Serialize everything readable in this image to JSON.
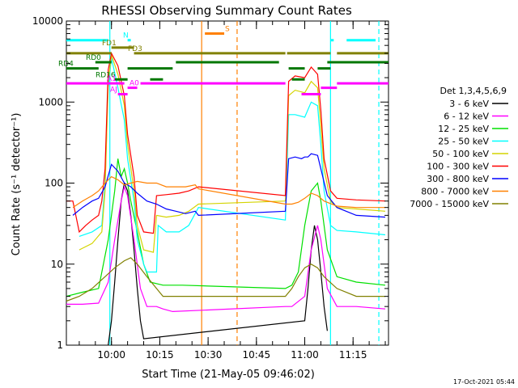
{
  "chart_data": {
    "type": "line",
    "title": "RHESSI Observing Summary Count Rates",
    "xlabel": "Start Time (21-May-05 09:46:02)",
    "ylabel": "Count Rate (s⁻¹ detector⁻¹)",
    "ylim": [
      1,
      10000
    ],
    "yscale": "log",
    "xlim_minutes": [
      0,
      100
    ],
    "x_ticks": [
      {
        "label": "10:00",
        "t": 14
      },
      {
        "label": "10:15",
        "t": 29
      },
      {
        "label": "10:30",
        "t": 44
      },
      {
        "label": "10:45",
        "t": 59
      },
      {
        "label": "11:00",
        "t": 74
      },
      {
        "label": "11:15",
        "t": 89
      }
    ],
    "y_ticks": [
      {
        "label": "1",
        "v": 1
      },
      {
        "label": "10",
        "v": 10
      },
      {
        "label": "100",
        "v": 100
      },
      {
        "label": "1000",
        "v": 1000
      },
      {
        "label": "10000",
        "v": 10000
      }
    ],
    "legend_title": "Det 1,3,4,5,6,9",
    "legend_position": "right",
    "series": [
      {
        "name": "3 - 6 keV",
        "color": "#000000",
        "points": [
          [
            13,
            1
          ],
          [
            14,
            2
          ],
          [
            15,
            6
          ],
          [
            16,
            20
          ],
          [
            17,
            60
          ],
          [
            18,
            100
          ],
          [
            19,
            80
          ],
          [
            20,
            40
          ],
          [
            21,
            15
          ],
          [
            22,
            5
          ],
          [
            23,
            2
          ],
          [
            24,
            1.2
          ],
          [
            74,
            2
          ],
          [
            75,
            5
          ],
          [
            76,
            15
          ],
          [
            77,
            30
          ],
          [
            78,
            20
          ],
          [
            79,
            8
          ],
          [
            80,
            3
          ],
          [
            81,
            1.5
          ]
        ]
      },
      {
        "name": "6 - 12 keV",
        "color": "#ff00ff",
        "points": [
          [
            0,
            3.2
          ],
          [
            5,
            3.2
          ],
          [
            10,
            3.3
          ],
          [
            13,
            6
          ],
          [
            15,
            20
          ],
          [
            17,
            60
          ],
          [
            18,
            90
          ],
          [
            19,
            70
          ],
          [
            21,
            20
          ],
          [
            23,
            5
          ],
          [
            25,
            3
          ],
          [
            28,
            3
          ],
          [
            30,
            2.8
          ],
          [
            33,
            2.6
          ],
          [
            68,
            3
          ],
          [
            70,
            3
          ],
          [
            74,
            4
          ],
          [
            76,
            15
          ],
          [
            78,
            30
          ],
          [
            79,
            20
          ],
          [
            81,
            5
          ],
          [
            84,
            3
          ],
          [
            90,
            3
          ],
          [
            99,
            2.8
          ]
        ]
      },
      {
        "name": "12 - 25 keV",
        "color": "#00e000",
        "points": [
          [
            0,
            4
          ],
          [
            5,
            4.5
          ],
          [
            10,
            5
          ],
          [
            13,
            20
          ],
          [
            15,
            80
          ],
          [
            16,
            200
          ],
          [
            17,
            120
          ],
          [
            18,
            150
          ],
          [
            19,
            100
          ],
          [
            20,
            60
          ],
          [
            22,
            25
          ],
          [
            24,
            10
          ],
          [
            26,
            6
          ],
          [
            30,
            5.5
          ],
          [
            33,
            5.5
          ],
          [
            36,
            5.5
          ],
          [
            68,
            5
          ],
          [
            70,
            5.5
          ],
          [
            72,
            8
          ],
          [
            74,
            30
          ],
          [
            76,
            80
          ],
          [
            78,
            100
          ],
          [
            79,
            60
          ],
          [
            81,
            15
          ],
          [
            84,
            7
          ],
          [
            90,
            6
          ],
          [
            99,
            5.5
          ]
        ]
      },
      {
        "name": "25 - 50 keV",
        "color": "#00ffff",
        "points": [
          [
            4,
            22
          ],
          [
            8,
            25
          ],
          [
            11,
            30
          ],
          [
            12,
            100
          ],
          [
            13,
            1500
          ],
          [
            14,
            3500
          ],
          [
            16,
            1500
          ],
          [
            18,
            600
          ],
          [
            19,
            200
          ],
          [
            21,
            60
          ],
          [
            22,
            20
          ],
          [
            24,
            10
          ],
          [
            25,
            8
          ],
          [
            28,
            8
          ],
          [
            28.5,
            30
          ],
          [
            31,
            25
          ],
          [
            35,
            25
          ],
          [
            38,
            30
          ],
          [
            41,
            50
          ],
          [
            68,
            35
          ],
          [
            69,
            700
          ],
          [
            71,
            700
          ],
          [
            74,
            650
          ],
          [
            76,
            1000
          ],
          [
            78,
            900
          ],
          [
            79,
            300
          ],
          [
            80,
            80
          ],
          [
            82,
            30
          ],
          [
            84,
            26
          ],
          [
            90,
            25
          ],
          [
            99,
            23
          ]
        ]
      },
      {
        "name": "50 - 100 keV",
        "color": "#d4d400",
        "points": [
          [
            4,
            15
          ],
          [
            8,
            18
          ],
          [
            11,
            25
          ],
          [
            12,
            80
          ],
          [
            13,
            1800
          ],
          [
            14,
            3800
          ],
          [
            16,
            2200
          ],
          [
            18,
            900
          ],
          [
            19,
            300
          ],
          [
            21,
            80
          ],
          [
            22,
            30
          ],
          [
            24,
            15
          ],
          [
            27,
            14
          ],
          [
            28,
            40
          ],
          [
            31,
            38
          ],
          [
            35,
            40
          ],
          [
            38,
            45
          ],
          [
            41,
            55
          ],
          [
            68,
            60
          ],
          [
            69,
            1200
          ],
          [
            71,
            1400
          ],
          [
            74,
            1300
          ],
          [
            76,
            1800
          ],
          [
            78,
            1500
          ],
          [
            79,
            500
          ],
          [
            80,
            150
          ],
          [
            82,
            60
          ],
          [
            84,
            50
          ],
          [
            90,
            48
          ],
          [
            99,
            45
          ]
        ]
      },
      {
        "name": "100 - 300 keV",
        "color": "#ff0000",
        "points": [
          [
            0,
            60
          ],
          [
            2,
            60
          ],
          [
            4,
            25
          ],
          [
            6,
            30
          ],
          [
            8,
            35
          ],
          [
            10,
            40
          ],
          [
            11,
            60
          ],
          [
            12,
            150
          ],
          [
            13,
            2500
          ],
          [
            14,
            4000
          ],
          [
            16,
            2800
          ],
          [
            18,
            1200
          ],
          [
            19,
            400
          ],
          [
            21,
            120
          ],
          [
            22,
            40
          ],
          [
            24,
            25
          ],
          [
            27,
            24
          ],
          [
            28,
            70
          ],
          [
            31,
            72
          ],
          [
            35,
            75
          ],
          [
            38,
            80
          ],
          [
            41,
            90
          ],
          [
            68,
            70
          ],
          [
            69,
            1800
          ],
          [
            71,
            2100
          ],
          [
            74,
            2000
          ],
          [
            76,
            2700
          ],
          [
            78,
            2200
          ],
          [
            79,
            800
          ],
          [
            80,
            200
          ],
          [
            82,
            80
          ],
          [
            84,
            65
          ],
          [
            90,
            62
          ],
          [
            99,
            60
          ]
        ]
      },
      {
        "name": "300 - 800 keV",
        "color": "#0000ff",
        "points": [
          [
            2,
            40
          ],
          [
            5,
            50
          ],
          [
            8,
            60
          ],
          [
            10,
            65
          ],
          [
            12,
            90
          ],
          [
            14,
            170
          ],
          [
            16,
            140
          ],
          [
            18,
            100
          ],
          [
            20,
            90
          ],
          [
            22,
            75
          ],
          [
            25,
            60
          ],
          [
            28,
            55
          ],
          [
            31,
            48
          ],
          [
            34,
            45
          ],
          [
            37,
            42
          ],
          [
            40,
            45
          ],
          [
            41,
            40
          ],
          [
            68,
            45
          ],
          [
            69,
            200
          ],
          [
            71,
            210
          ],
          [
            73,
            200
          ],
          [
            74,
            210
          ],
          [
            75,
            210
          ],
          [
            76,
            230
          ],
          [
            78,
            220
          ],
          [
            79,
            150
          ],
          [
            81,
            70
          ],
          [
            84,
            50
          ],
          [
            90,
            40
          ],
          [
            99,
            38
          ]
        ]
      },
      {
        "name": "800 - 7000 keV",
        "color": "#ff8000",
        "points": [
          [
            2,
            50
          ],
          [
            5,
            60
          ],
          [
            8,
            70
          ],
          [
            10,
            80
          ],
          [
            12,
            100
          ],
          [
            14,
            120
          ],
          [
            16,
            110
          ],
          [
            18,
            95
          ],
          [
            20,
            100
          ],
          [
            22,
            105
          ],
          [
            25,
            100
          ],
          [
            28,
            100
          ],
          [
            31,
            90
          ],
          [
            34,
            90
          ],
          [
            37,
            90
          ],
          [
            40,
            95
          ],
          [
            41,
            85
          ],
          [
            68,
            55
          ],
          [
            70,
            55
          ],
          [
            72,
            58
          ],
          [
            74,
            65
          ],
          [
            76,
            75
          ],
          [
            78,
            70
          ],
          [
            80,
            60
          ],
          [
            84,
            52
          ],
          [
            90,
            50
          ],
          [
            99,
            50
          ]
        ]
      },
      {
        "name": "7000 - 15000 keV",
        "color": "#808000",
        "points": [
          [
            0,
            3.5
          ],
          [
            4,
            4
          ],
          [
            8,
            5
          ],
          [
            12,
            7
          ],
          [
            15,
            9
          ],
          [
            18,
            11
          ],
          [
            20,
            12
          ],
          [
            22,
            10
          ],
          [
            25,
            7
          ],
          [
            28,
            5
          ],
          [
            30,
            4
          ],
          [
            33,
            4
          ],
          [
            68,
            4
          ],
          [
            70,
            5
          ],
          [
            72,
            7
          ],
          [
            74,
            9
          ],
          [
            76,
            10
          ],
          [
            78,
            9
          ],
          [
            80,
            7
          ],
          [
            84,
            5
          ],
          [
            90,
            4
          ],
          [
            99,
            4
          ]
        ]
      }
    ],
    "state_bars": [
      {
        "label": "N",
        "color": "#00ffff",
        "v": 5800,
        "segments": [
          [
            0,
            13
          ],
          [
            19,
            20
          ],
          [
            82,
            83
          ],
          [
            87,
            96
          ]
        ]
      },
      {
        "label": "S",
        "color": "#ff8000",
        "v": 7000,
        "segments": [
          [
            43,
            49
          ]
        ]
      },
      {
        "label": "FD1",
        "color": "#808000",
        "v": 4700,
        "segments": [
          [
            14,
            21
          ]
        ]
      },
      {
        "label": "FD3",
        "color": "#808000",
        "v": 4000,
        "segments": [
          [
            0,
            14
          ],
          [
            21,
            68
          ],
          [
            68.5,
            82
          ],
          [
            84,
            100
          ]
        ]
      },
      {
        "label": "RD0",
        "color": "#007700",
        "v": 3100,
        "segments": [
          [
            9,
            14
          ],
          [
            34,
            66
          ],
          [
            81,
            100
          ]
        ]
      },
      {
        "label": "RD4",
        "color": "#007700",
        "v": 2600,
        "segments": [
          [
            0,
            10
          ],
          [
            19,
            33
          ],
          [
            69,
            74
          ],
          [
            78,
            82
          ]
        ]
      },
      {
        "label": "RD16",
        "color": "#007700",
        "v": 1900,
        "segments": [
          [
            15,
            19
          ],
          [
            26,
            30
          ],
          [
            70,
            74
          ]
        ]
      },
      {
        "label": "A1",
        "color": "#ff00ff",
        "v": 1700,
        "segments": [
          [
            0,
            18
          ],
          [
            23,
            68
          ],
          [
            84,
            100
          ]
        ]
      },
      {
        "label": "A0",
        "color": "#ff00ff",
        "v": 1500,
        "segments": [
          [
            19,
            22
          ],
          [
            79,
            84
          ]
        ]
      },
      {
        "label": "AJ",
        "color": "#ff00ff",
        "v": 1250,
        "segments": [
          [
            16,
            19
          ],
          [
            73,
            79
          ]
        ]
      }
    ],
    "vlines": [
      {
        "t": 13.5,
        "color": "#00ffff",
        "style": "solid"
      },
      {
        "t": 42,
        "color": "#ff8000",
        "style": "solid"
      },
      {
        "t": 53,
        "color": "#ff8000",
        "style": "dashed"
      },
      {
        "t": 82,
        "color": "#00ffff",
        "style": "solid"
      },
      {
        "t": 97,
        "color": "#00ffff",
        "style": "dashed"
      }
    ],
    "grid": false
  },
  "footer_timestamp": "17-Oct-2021 05:44"
}
